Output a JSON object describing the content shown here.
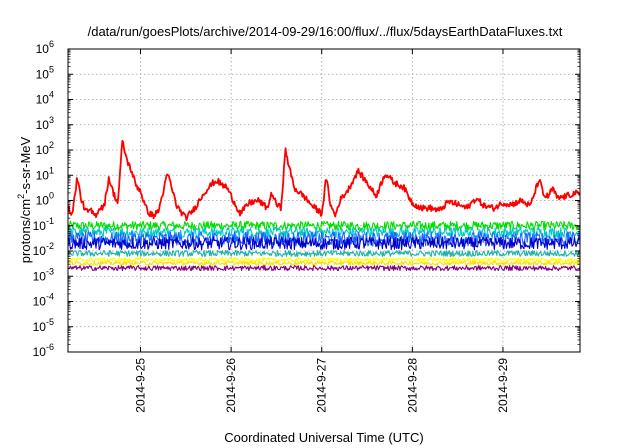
{
  "chart_data": {
    "type": "line",
    "title": "/data/run/goesPlots/archive/2014-09-29/16:00/flux/../flux/5daysEarthDataFluxes.txt",
    "xlabel": "Coordinated Universal Time (UTC)",
    "ylabel_main": "protons/cm",
    "ylabel_sup": "2",
    "ylabel_rest": "-s-sr-MeV",
    "ylim": [
      1e-06,
      1000000.0
    ],
    "yscale": "log",
    "grid": true,
    "x_ticks": [
      "2014-9-25",
      "2014-9-26",
      "2014-9-27",
      "2014-9-28",
      "2014-9-29"
    ],
    "y_ticks": [
      {
        "base": "10",
        "exp": "-6",
        "value": 1e-06
      },
      {
        "base": "10",
        "exp": "-5",
        "value": 1e-05
      },
      {
        "base": "10",
        "exp": "-4",
        "value": 0.0001
      },
      {
        "base": "10",
        "exp": "-3",
        "value": 0.001
      },
      {
        "base": "10",
        "exp": "-2",
        "value": 0.01
      },
      {
        "base": "10",
        "exp": "-1",
        "value": 0.1
      },
      {
        "base": "10",
        "exp": "0",
        "value": 1
      },
      {
        "base": "10",
        "exp": "1",
        "value": 10
      },
      {
        "base": "10",
        "exp": "2",
        "value": 100
      },
      {
        "base": "10",
        "exp": "3",
        "value": 1000
      },
      {
        "base": "10",
        "exp": "4",
        "value": 10000
      },
      {
        "base": "10",
        "exp": "5",
        "value": 100000
      },
      {
        "base": "10",
        "exp": "6",
        "value": 1000000
      }
    ],
    "xlim_days": [
      -0.8,
      4.85
    ],
    "x_unit_note": "",
    "series": [
      {
        "color": "#ff0000",
        "noise": 0.12,
        "x": [
          -0.8,
          -0.75,
          -0.7,
          -0.65,
          -0.6,
          -0.55,
          -0.5,
          -0.45,
          -0.4,
          -0.35,
          -0.3,
          -0.25,
          -0.2,
          -0.15,
          -0.1,
          -0.05,
          0.0,
          0.05,
          0.1,
          0.15,
          0.2,
          0.3,
          0.4,
          0.5,
          0.6,
          0.7,
          0.8,
          0.85,
          0.9,
          0.95,
          1.0,
          1.1,
          1.2,
          1.3,
          1.4,
          1.45,
          1.5,
          1.55,
          1.6,
          1.65,
          1.7,
          1.8,
          1.9,
          2.0,
          2.05,
          2.1,
          2.15,
          2.2,
          2.3,
          2.4,
          2.5,
          2.6,
          2.7,
          2.8,
          2.9,
          3.0,
          3.1,
          3.2,
          3.3,
          3.4,
          3.5,
          3.6,
          3.7,
          3.8,
          3.9,
          4.0,
          4.1,
          4.2,
          4.3,
          4.4,
          4.45,
          4.5,
          4.55,
          4.6,
          4.7,
          4.8,
          4.85
        ],
        "y": [
          0.5,
          0.3,
          8,
          1,
          0.35,
          0.4,
          0.25,
          0.5,
          0.6,
          8,
          2,
          0.8,
          220,
          40,
          15,
          4,
          2.5,
          0.6,
          0.3,
          0.25,
          0.4,
          12,
          0.6,
          0.2,
          0.5,
          2,
          5,
          6,
          4,
          3.5,
          1.5,
          0.3,
          0.8,
          1,
          0.5,
          2,
          0.7,
          0.5,
          100,
          15,
          3,
          1.5,
          0.6,
          0.3,
          8,
          0.6,
          0.25,
          1,
          3,
          15,
          5,
          1.5,
          12,
          5,
          3.5,
          0.8,
          0.5,
          0.5,
          0.4,
          0.9,
          0.7,
          0.5,
          1.2,
          0.6,
          0.5,
          0.8,
          0.7,
          1,
          0.6,
          7,
          1.5,
          1.5,
          3,
          1.2,
          1.5,
          2,
          1.5
        ]
      },
      {
        "color": "#00dd00",
        "noise": 0.18,
        "x": [
          -0.8,
          4.85
        ],
        "y": [
          0.1,
          0.1
        ]
      },
      {
        "color": "#00c8c8",
        "noise": 0.2,
        "x": [
          -0.8,
          4.85
        ],
        "y": [
          0.055,
          0.055
        ]
      },
      {
        "color": "#1e64ff",
        "noise": 0.28,
        "x": [
          -0.8,
          4.85
        ],
        "y": [
          0.03,
          0.03
        ]
      },
      {
        "color": "#0000cc",
        "noise": 0.25,
        "x": [
          -0.8,
          4.85
        ],
        "y": [
          0.02,
          0.02
        ]
      },
      {
        "color": "#20b2aa",
        "noise": 0.12,
        "x": [
          -0.8,
          4.85
        ],
        "y": [
          0.008,
          0.008
        ]
      },
      {
        "color": "#ffff00",
        "noise": 0.08,
        "x": [
          -0.8,
          4.85
        ],
        "y": [
          0.0045,
          0.0045
        ]
      },
      {
        "color": "#ffdd00",
        "noise": 0.08,
        "x": [
          -0.8,
          4.85
        ],
        "y": [
          0.0033,
          0.0033
        ]
      },
      {
        "color": "#800080",
        "noise": 0.1,
        "x": [
          -0.8,
          4.85
        ],
        "y": [
          0.0021,
          0.0021
        ]
      }
    ]
  }
}
